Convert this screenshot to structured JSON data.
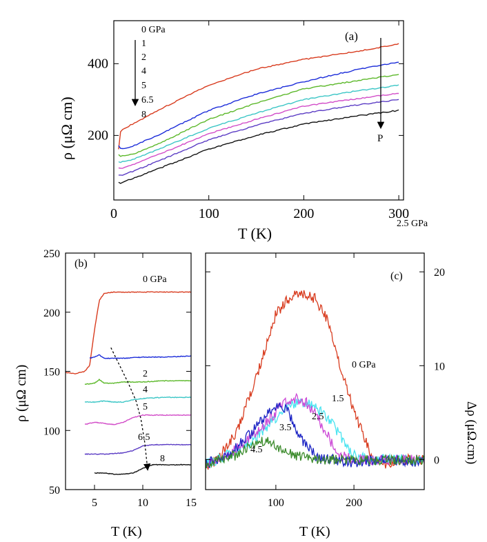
{
  "chart_data": [
    {
      "panel": "(a)",
      "type": "line",
      "xlabel": "T (K)",
      "ylabel": "ρ (μΩ cm)",
      "xlim": [
        0,
        305
      ],
      "ylim": [
        20,
        520
      ],
      "xticks": [
        0,
        100,
        200,
        300
      ],
      "yticks": [
        200,
        400
      ],
      "legend_order": [
        "0 GPa",
        "1",
        "2",
        "4",
        "5",
        "6.5",
        "8"
      ],
      "extra_label": "2.5 GPa",
      "arrow_label": "P",
      "series": [
        {
          "name": "0 GPa",
          "color": "#d83b1e",
          "T": [
            0,
            5,
            6,
            8,
            10,
            20,
            50,
            100,
            150,
            200,
            250,
            300
          ],
          "rho": [
            null,
            160,
            205,
            215,
            218,
            232,
            275,
            340,
            385,
            412,
            432,
            455
          ]
        },
        {
          "name": "1",
          "color": "#1a2bd9",
          "T": [
            5,
            7,
            10,
            20,
            50,
            100,
            150,
            200,
            250,
            300
          ],
          "rho": [
            170,
            163,
            163,
            170,
            205,
            270,
            315,
            350,
            380,
            405
          ]
        },
        {
          "name": "2",
          "color": "#5cb82a",
          "T": [
            5,
            7,
            10,
            20,
            50,
            100,
            150,
            200,
            250,
            300
          ],
          "rho": [
            145,
            143,
            143,
            148,
            180,
            245,
            290,
            330,
            350,
            370
          ]
        },
        {
          "name": "4",
          "color": "#3cc6c6",
          "T": [
            5,
            7,
            10,
            20,
            50,
            100,
            150,
            200,
            250,
            300
          ],
          "rho": [
            125,
            125,
            127,
            133,
            165,
            220,
            262,
            300,
            322,
            340
          ]
        },
        {
          "name": "5",
          "color": "#d24cc8",
          "T": [
            5,
            7,
            10,
            20,
            50,
            100,
            150,
            200,
            250,
            300
          ],
          "rho": [
            108,
            108,
            110,
            118,
            150,
            205,
            245,
            282,
            300,
            318
          ]
        },
        {
          "name": "6.5",
          "color": "#5a3bc4",
          "T": [
            5,
            7,
            10,
            20,
            50,
            100,
            150,
            200,
            250,
            300
          ],
          "rho": [
            88,
            88,
            90,
            100,
            132,
            188,
            228,
            262,
            283,
            300
          ]
        },
        {
          "name": "8",
          "color": "#111111",
          "T": [
            5,
            7,
            10,
            20,
            50,
            100,
            150,
            200,
            250,
            300
          ],
          "rho": [
            68,
            67,
            70,
            80,
            110,
            162,
            200,
            232,
            252,
            270
          ]
        }
      ]
    },
    {
      "panel": "(b)",
      "type": "line",
      "xlabel": "T (K)",
      "ylabel": "ρ (μΩ cm)",
      "xlim": [
        2,
        15
      ],
      "ylim": [
        50,
        250
      ],
      "xticks": [
        5,
        10,
        15
      ],
      "yticks": [
        50,
        100,
        150,
        200,
        250
      ],
      "series": [
        {
          "name": "0 GPa",
          "color": "#d83b1e",
          "T": [
            2,
            3,
            4,
            4.5,
            5,
            5.5,
            6,
            7,
            8,
            10,
            12,
            15
          ],
          "rho": [
            149,
            148,
            150,
            155,
            185,
            210,
            216,
            217,
            217,
            217,
            217,
            217
          ]
        },
        {
          "name": "1",
          "color": "#1a2bd9",
          "T": [
            4.5,
            5,
            5.5,
            6,
            7,
            8,
            10,
            12,
            15
          ],
          "rho": [
            161,
            162,
            164,
            161,
            161,
            161,
            162,
            162,
            163
          ]
        },
        {
          "name": "2",
          "color": "#5cb82a",
          "T": [
            4,
            5,
            5.5,
            6,
            7,
            8,
            10,
            12,
            15
          ],
          "rho": [
            139,
            140,
            143,
            140,
            140,
            141,
            141,
            142,
            142
          ]
        },
        {
          "name": "4",
          "color": "#3cc6c6",
          "T": [
            4,
            5,
            6,
            7,
            8,
            9,
            10,
            12,
            15
          ],
          "rho": [
            124,
            124,
            125,
            124,
            124,
            126,
            127,
            128,
            128
          ]
        },
        {
          "name": "5",
          "color": "#d24cc8",
          "T": [
            4,
            5,
            6,
            7,
            8,
            9,
            10,
            12,
            15
          ],
          "rho": [
            105,
            107,
            106,
            105,
            107,
            111,
            113,
            113,
            113
          ]
        },
        {
          "name": "6.5",
          "color": "#5a3bc4",
          "T": [
            4,
            5,
            6,
            8,
            9,
            10,
            11,
            12,
            15
          ],
          "rho": [
            80,
            80,
            80,
            81,
            83,
            87,
            88,
            88,
            88
          ]
        },
        {
          "name": "8",
          "color": "#111111",
          "T": [
            5,
            6,
            7,
            8,
            9,
            10,
            11,
            12,
            15
          ],
          "rho": [
            64,
            64,
            63,
            63,
            64,
            68,
            71,
            71,
            71
          ]
        }
      ],
      "arrow_T": [
        6.7,
        8.5,
        9.3,
        9.8,
        10.2,
        10.5
      ],
      "arrow_rho": [
        170,
        140,
        125,
        110,
        90,
        67
      ],
      "labels": [
        "0 GPa",
        "2",
        "4",
        "5",
        "6.5",
        "8"
      ]
    },
    {
      "panel": "(c)",
      "type": "line",
      "xlabel": "T (K)",
      "ylabel": "Δρ (μΩ.cm)",
      "xlim": [
        10,
        290
      ],
      "ylim": [
        -3.2,
        22
      ],
      "xticks": [
        100,
        200
      ],
      "yticks": [
        0,
        10,
        20
      ],
      "series": [
        {
          "name": "0 GPa",
          "color": "#d83b1e",
          "T": [
            10,
            30,
            50,
            80,
            100,
            120,
            140,
            150,
            165,
            175,
            190,
            200,
            215,
            225,
            240,
            260,
            290
          ],
          "drho": [
            -1.2,
            0.5,
            3,
            10,
            15.5,
            17.5,
            17.5,
            17.2,
            15,
            12,
            8,
            5,
            2,
            0,
            -0.5,
            0,
            0
          ]
        },
        {
          "name": "1.5",
          "color": "#48e4f0",
          "T": [
            10,
            40,
            70,
            100,
            120,
            140,
            160,
            175,
            190,
            200,
            220,
            250,
            290
          ],
          "drho": [
            -0.5,
            0.5,
            2,
            4.5,
            6,
            6,
            5,
            3.5,
            1.5,
            0.5,
            0,
            0,
            0
          ]
        },
        {
          "name": "2.5",
          "color": "#cc4ad6",
          "T": [
            10,
            40,
            70,
            100,
            110,
            125,
            140,
            150,
            160,
            170,
            180,
            200,
            290
          ],
          "drho": [
            -0.5,
            0.5,
            2.5,
            5,
            6,
            6.5,
            6,
            5,
            3.5,
            2,
            0.5,
            0,
            0
          ]
        },
        {
          "name": "3.5",
          "color": "#1c24c4",
          "T": [
            10,
            40,
            70,
            95,
            105,
            115,
            125,
            135,
            145,
            155,
            175,
            200,
            240,
            290
          ],
          "drho": [
            -0.5,
            0.5,
            3,
            5.5,
            5.8,
            5.2,
            3.5,
            2,
            1,
            0,
            0,
            -0.3,
            0,
            -0.3
          ]
        },
        {
          "name": "4.5",
          "color": "#3a8a2a",
          "T": [
            10,
            30,
            50,
            70,
            85,
            95,
            110,
            130,
            160,
            200,
            250,
            290
          ],
          "drho": [
            -0.5,
            0,
            0.5,
            1.5,
            2,
            1.8,
            0.8,
            0.3,
            0,
            0,
            0,
            0
          ]
        }
      ],
      "labels": [
        "0 GPa",
        "1.5",
        "2.5",
        "3.5",
        "4.5"
      ]
    }
  ],
  "panel_labels": {
    "a": "(a)",
    "b": "(b)",
    "c": "(c)"
  },
  "panel_a": {
    "ylabel": "ρ (μΩ cm)",
    "xlabel": "T (K)",
    "xtick_labels": [
      "0",
      "100",
      "200",
      "300"
    ],
    "ytick_labels": [
      "200",
      "400"
    ],
    "legend": [
      "0 GPa",
      "1",
      "2",
      "4",
      "5",
      "6.5",
      "8"
    ],
    "extra_label": "2.5 GPa",
    "arrow_label": "P"
  },
  "panel_b": {
    "ylabel": "ρ (μΩ cm)",
    "xlabel": "T (K)",
    "xtick_labels": [
      "5",
      "10",
      "15"
    ],
    "ytick_labels": [
      "50",
      "100",
      "150",
      "200",
      "250"
    ],
    "labels": [
      "0 GPa",
      "2",
      "4",
      "5",
      "6.5",
      "8"
    ]
  },
  "panel_c": {
    "ylabel": "Δρ (μΩ.cm)",
    "xlabel": "T (K)",
    "xtick_labels": [
      "100",
      "200"
    ],
    "ytick_labels": [
      "0",
      "10",
      "20"
    ],
    "labels": [
      "0 GPa",
      "1.5",
      "2.5",
      "3.5",
      "4.5"
    ]
  }
}
